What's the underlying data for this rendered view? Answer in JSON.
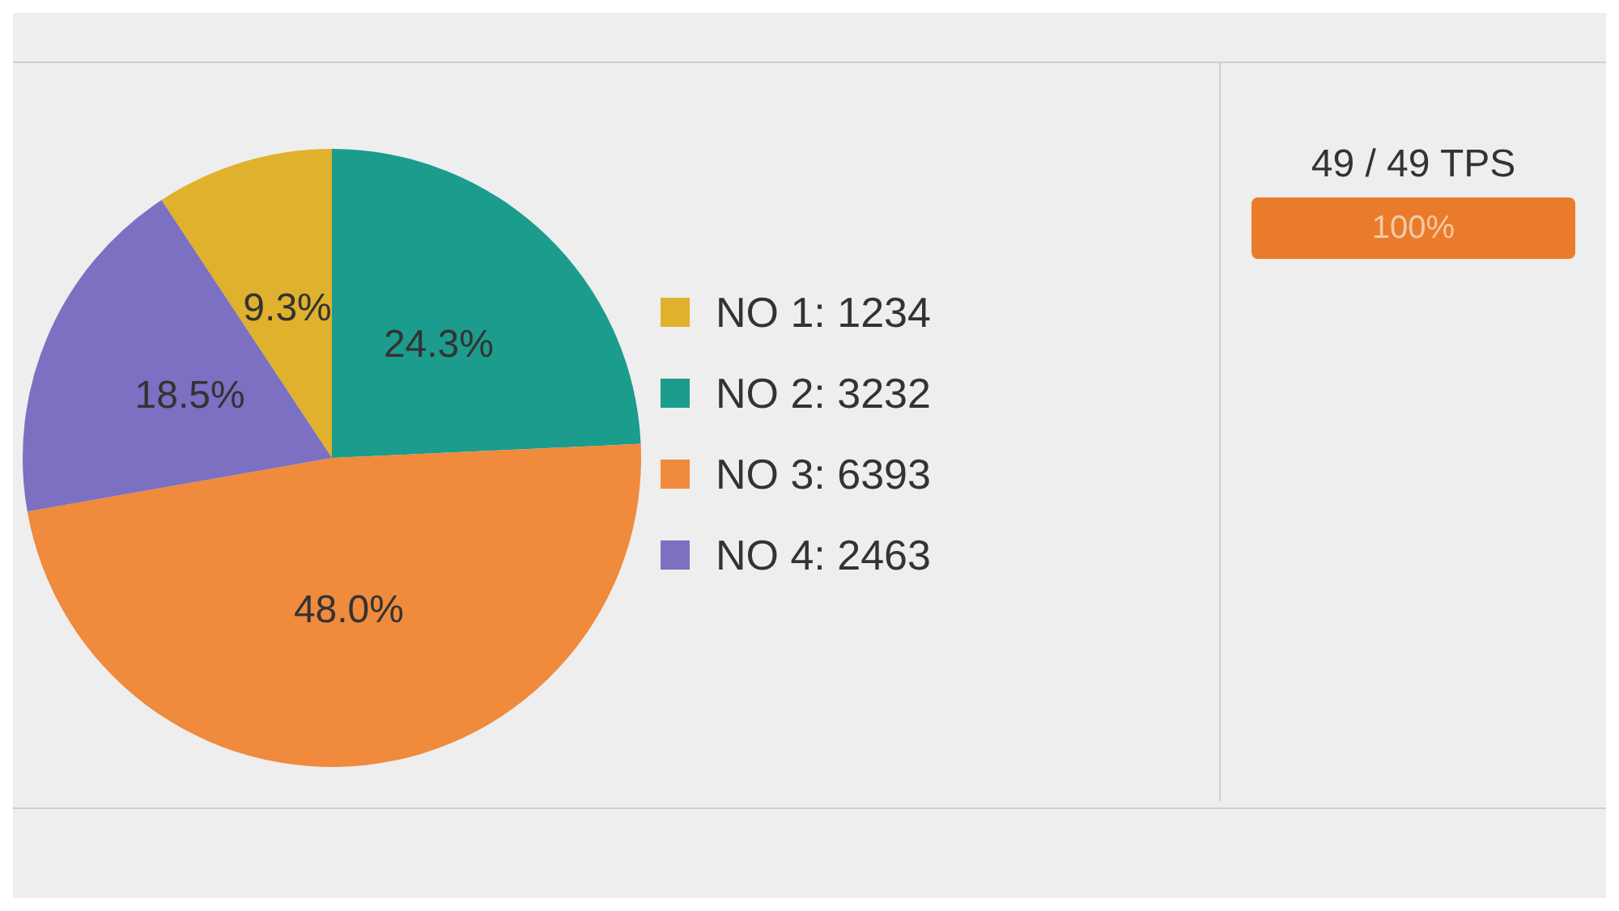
{
  "chart_data": {
    "type": "pie",
    "categories": [
      "NO 1: 1234",
      "NO 2: 3232",
      "NO 3: 6393",
      "NO 4: 2463"
    ],
    "values": [
      9.3,
      24.3,
      48.0,
      18.5
    ],
    "colors": [
      "#e0b12c",
      "#1c9c8c",
      "#f08a3c",
      "#7b70c2"
    ],
    "value_labels": [
      "9.3%",
      "24.3%",
      "48.0%",
      "18.5%"
    ],
    "legend": "right",
    "annotations": [
      "49 / 49 TPS",
      "100%"
    ]
  }
}
